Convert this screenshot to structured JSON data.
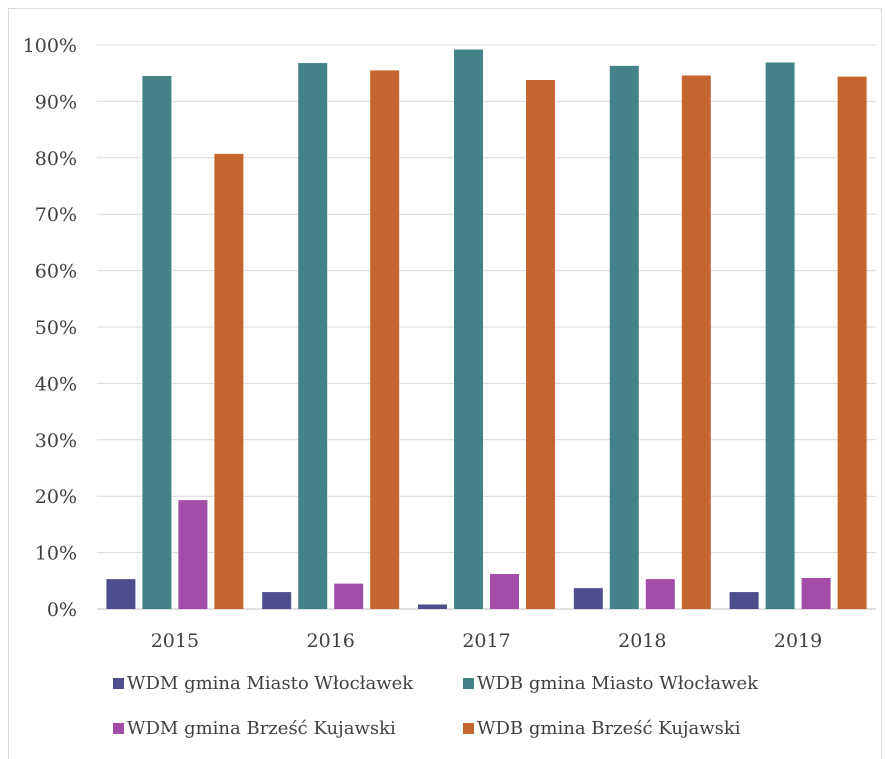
{
  "chart_data": {
    "type": "bar",
    "title": "",
    "xlabel": "",
    "ylabel": "",
    "categories": [
      "2015",
      "2016",
      "2017",
      "2018",
      "2019"
    ],
    "ylim": [
      0,
      100
    ],
    "y_ticks": [
      "0%",
      "10%",
      "20%",
      "30%",
      "40%",
      "50%",
      "60%",
      "70%",
      "80%",
      "90%",
      "100%"
    ],
    "grid": true,
    "legend_position": "bottom",
    "series": [
      {
        "name": "WDM gmina Miasto Włocławek",
        "color": "#4e4e8c",
        "values": [
          5.3,
          3.0,
          0.8,
          3.7,
          3.0
        ]
      },
      {
        "name": "WDB gmina Miasto Włocławek",
        "color": "#438387",
        "values": [
          94.5,
          96.8,
          99.2,
          96.3,
          96.9
        ]
      },
      {
        "name": "WDM gmina Brześć Kujawski",
        "color": "#a24ea8",
        "values": [
          19.3,
          4.5,
          6.2,
          5.3,
          5.5
        ]
      },
      {
        "name": "WDB gmina Brześć Kujawski",
        "color": "#c5652f",
        "values": [
          80.7,
          95.5,
          93.8,
          94.6,
          94.4
        ]
      }
    ]
  }
}
